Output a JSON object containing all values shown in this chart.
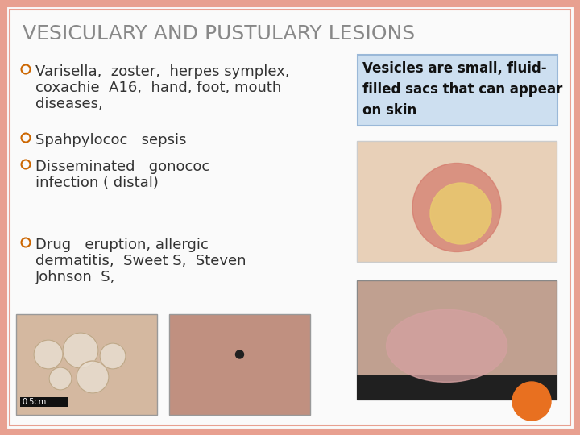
{
  "title": "VESICULARY AND PUSTULARY LESIONS",
  "title_color": "#888888",
  "background_color": "#f5f5f5",
  "outer_border_color": "#e8a090",
  "bullet_color": "#cc6600",
  "bullet1_line1": "Varisella,  zoster,  herpes symplex,",
  "bullet1_line2": "coxachie  A16,  hand, foot, mouth",
  "bullet1_line3": "diseases,",
  "bullet2_text": "Spahpylococ   sepsis",
  "bullet3_line1": "Disseminated   gonococ",
  "bullet3_line2": "infection ( distal)",
  "bullet4_line1": "Drug   eruption, allergic",
  "bullet4_line2": "dermatitis,  Sweet S,  Steven",
  "bullet4_line3": "Johnson  S,",
  "info_box_text_line1": "Vesicles are small, fluid-",
  "info_box_text_line2": "filled sacs that can appear",
  "info_box_text_line3": "on skin",
  "info_box_bg": "#cddff0",
  "info_box_border": "#9ab8d8",
  "orange_circle_color": "#e87020",
  "font_size_title": 18,
  "font_size_body": 13,
  "font_size_info": 12,
  "img1_color": "#c8a888",
  "img2_color": "#b89080",
  "img3_color": "#c0a090",
  "img4_color": "#c09880",
  "slide_bg": "#fafafa"
}
